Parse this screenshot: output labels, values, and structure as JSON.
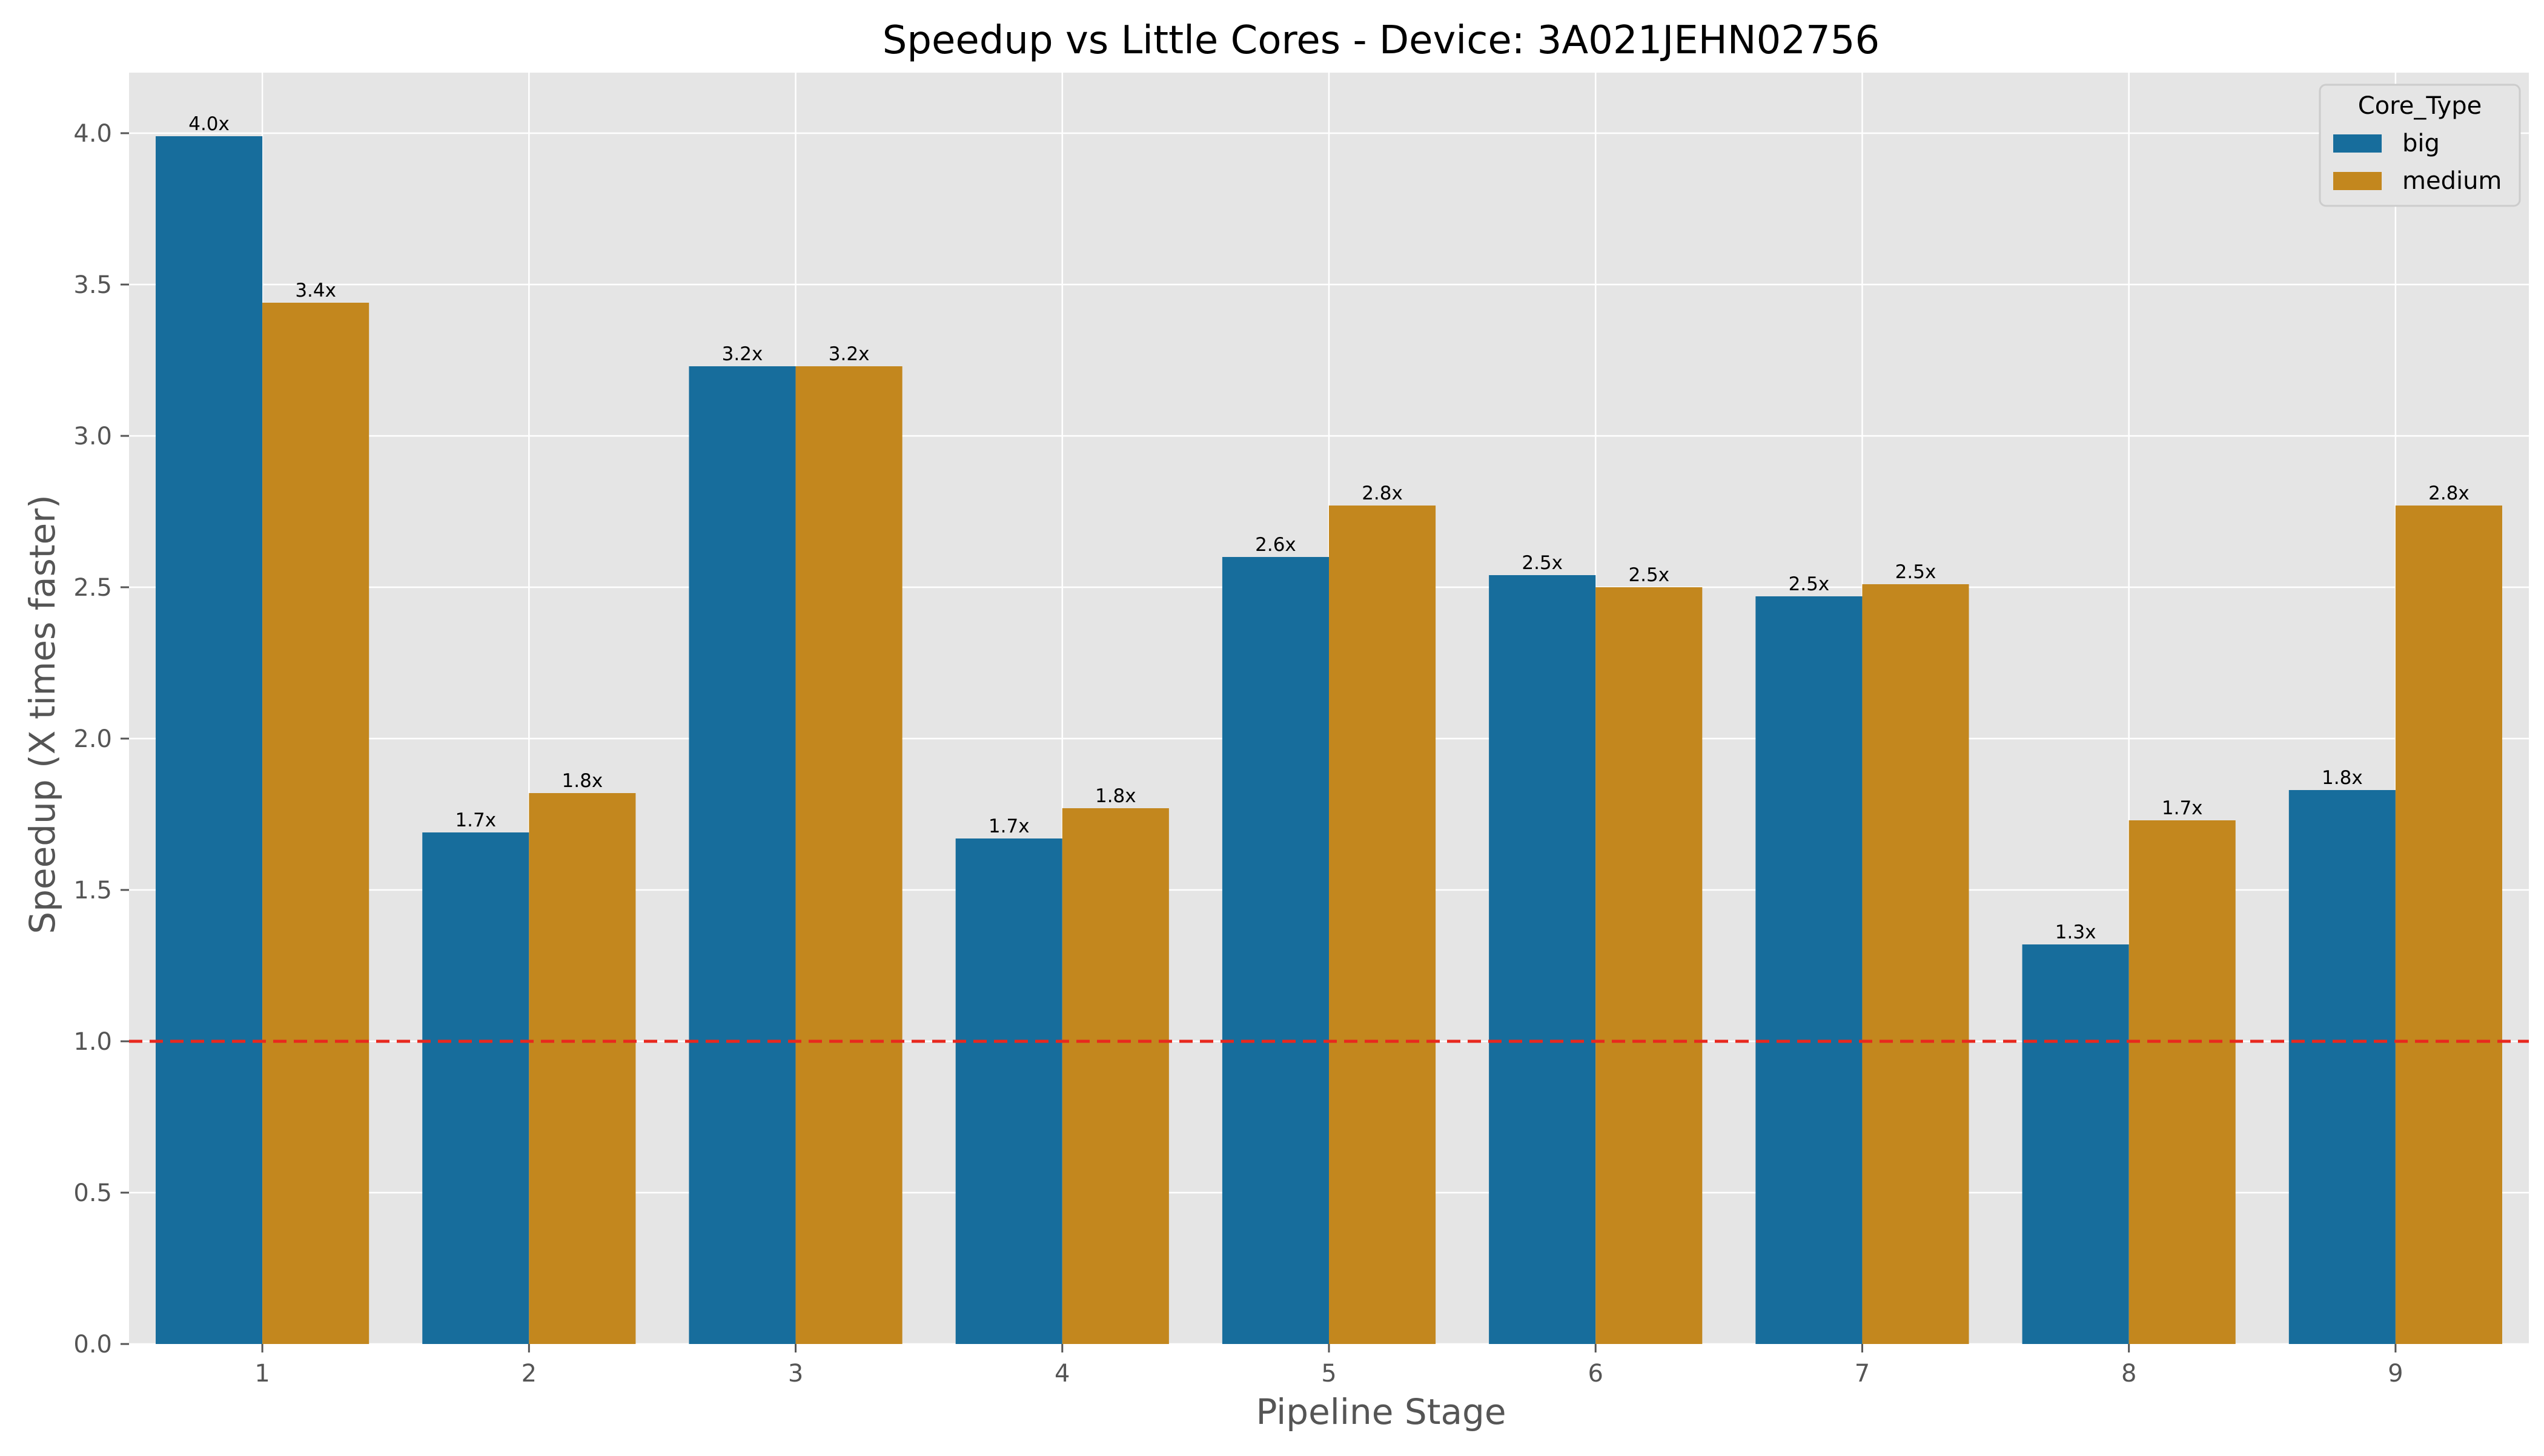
{
  "chart_data": {
    "type": "bar",
    "title": "Speedup vs Little Cores - Device: 3A021JEHN02756",
    "xlabel": "Pipeline Stage",
    "ylabel": "Speedup (X times faster)",
    "categories": [
      "1",
      "2",
      "3",
      "4",
      "5",
      "6",
      "7",
      "8",
      "9"
    ],
    "series": [
      {
        "name": "big",
        "color": "#176d9c",
        "values": [
          3.99,
          1.69,
          3.23,
          1.67,
          2.6,
          2.54,
          2.47,
          1.32,
          1.83
        ],
        "labels": [
          "4.0x",
          "1.7x",
          "3.2x",
          "1.7x",
          "2.6x",
          "2.5x",
          "2.5x",
          "1.3x",
          "1.8x"
        ]
      },
      {
        "name": "medium",
        "color": "#c3871e",
        "values": [
          3.44,
          1.82,
          3.23,
          1.77,
          2.77,
          2.5,
          2.51,
          1.73,
          2.77
        ],
        "labels": [
          "3.4x",
          "1.8x",
          "3.2x",
          "1.8x",
          "2.8x",
          "2.5x",
          "2.5x",
          "1.7x",
          "2.8x"
        ]
      }
    ],
    "ylim": [
      0,
      4.2
    ],
    "yticks": [
      "0.0",
      "0.5",
      "1.0",
      "1.5",
      "2.0",
      "2.5",
      "3.0",
      "3.5",
      "4.0"
    ],
    "reference_line": {
      "value": 1.0,
      "color": "#e8281e",
      "style": "dashed"
    },
    "grid": true,
    "legend": {
      "title": "Core_Type",
      "position": "top-right"
    },
    "background": "#e5e5e5"
  }
}
